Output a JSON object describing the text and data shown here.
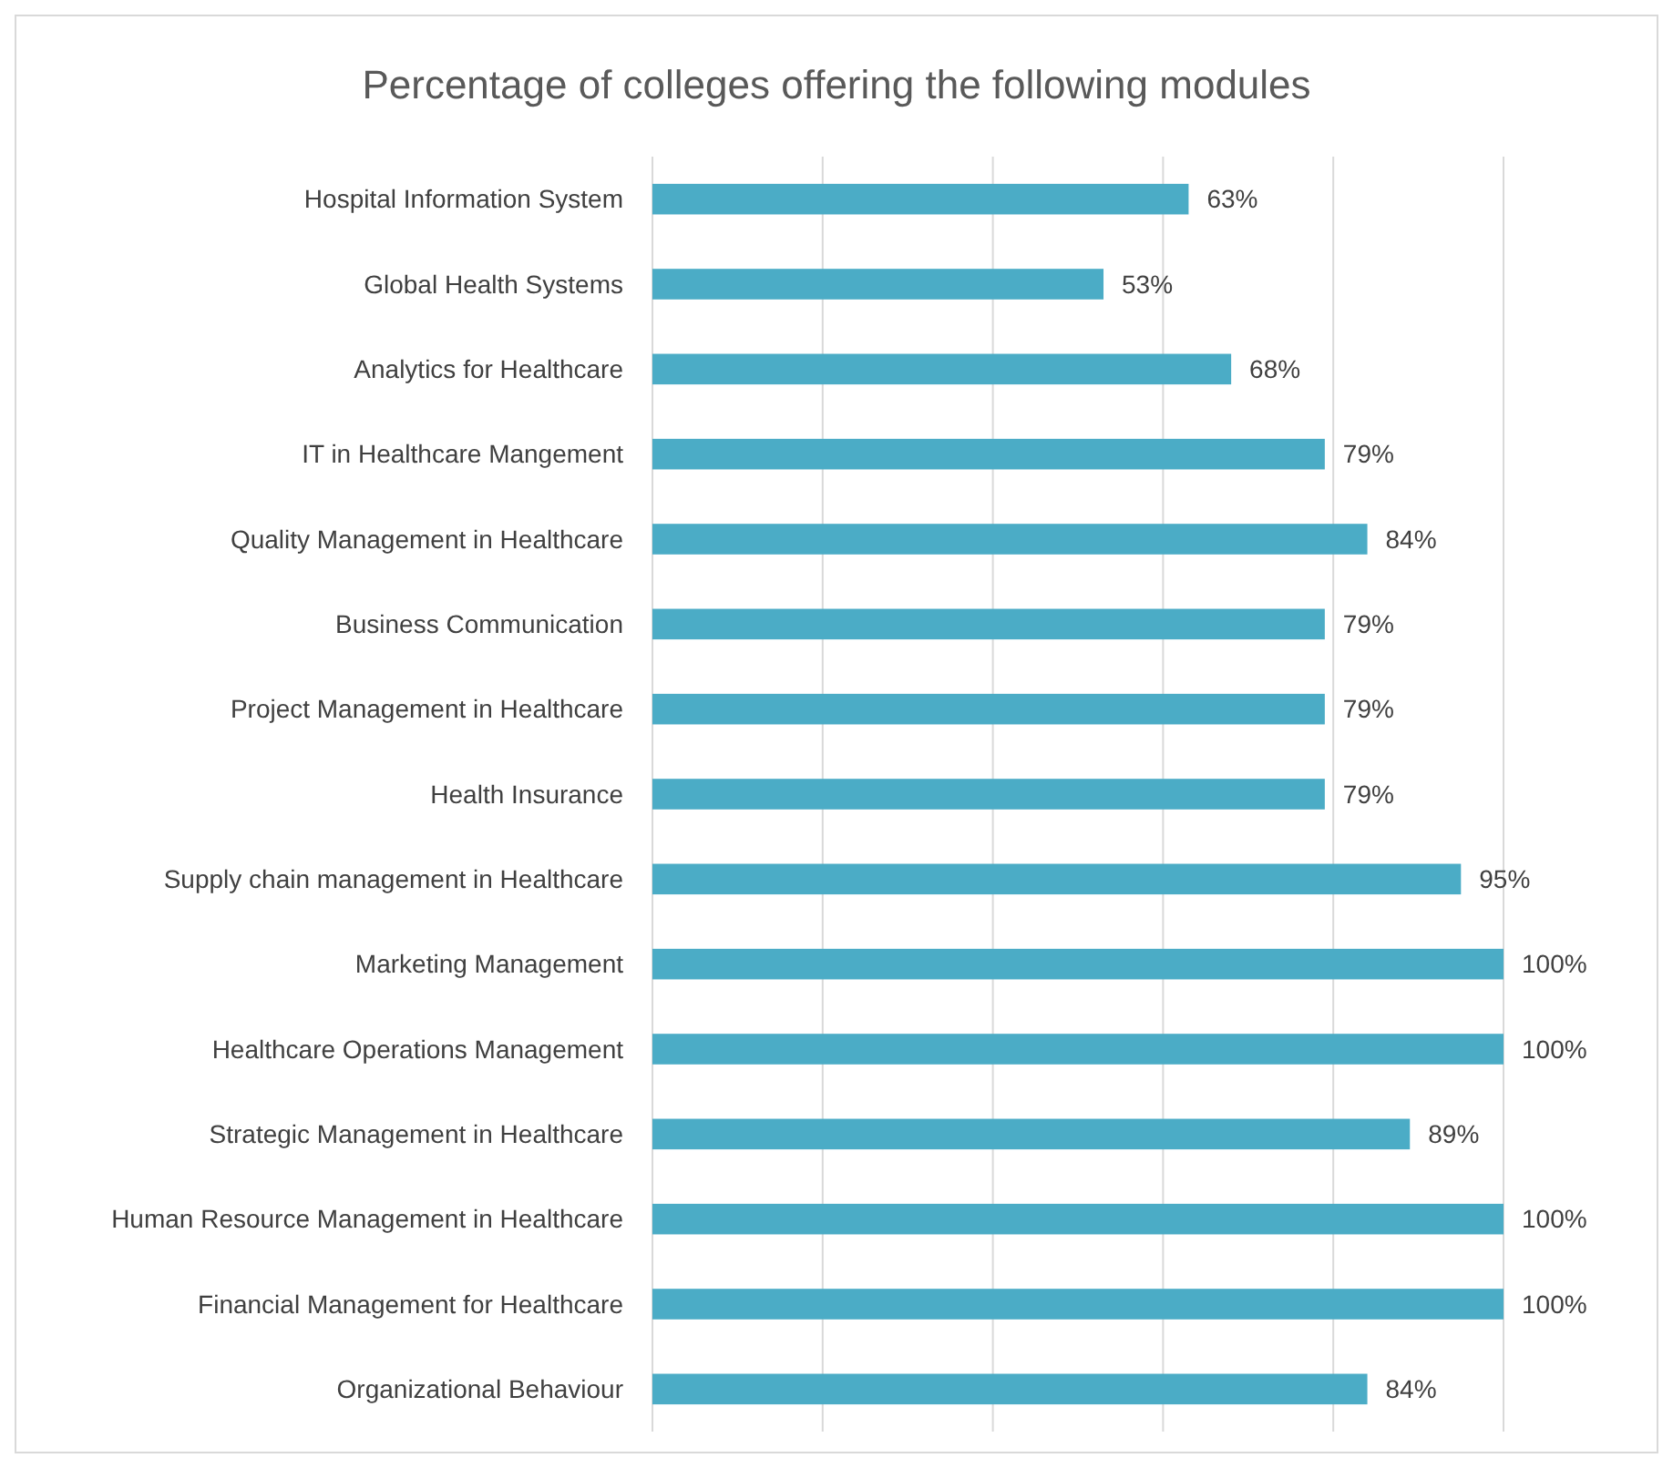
{
  "chart_data": {
    "type": "bar",
    "orientation": "horizontal",
    "title": "Percentage of colleges offering the following modules",
    "categories": [
      "Hospital Information System",
      "Global Health Systems",
      "Analytics for Healthcare",
      "IT in Healthcare Mangement",
      "Quality Management in Healthcare",
      "Business Communication",
      "Project Management in Healthcare",
      "Health Insurance",
      "Supply chain management in Healthcare",
      "Marketing Management",
      "Healthcare Operations Management",
      "Strategic Management in Healthcare",
      "Human Resource Management in Healthcare",
      "Financial Management for Healthcare",
      "Organizational Behaviour"
    ],
    "values": [
      63,
      53,
      68,
      79,
      84,
      79,
      79,
      79,
      95,
      100,
      100,
      89,
      100,
      100,
      84
    ],
    "value_labels": [
      "63%",
      "53%",
      "68%",
      "79%",
      "84%",
      "79%",
      "79%",
      "79%",
      "95%",
      "100%",
      "100%",
      "89%",
      "100%",
      "100%",
      "84%"
    ],
    "color": "#4bacc6",
    "xlim": [
      0,
      100
    ],
    "xticks": [
      {
        "value": 0,
        "label": null
      },
      {
        "value": 20,
        "label": null
      },
      {
        "value": 40,
        "label": null
      },
      {
        "value": 60,
        "label": null
      },
      {
        "value": 80,
        "label": null
      },
      {
        "value": 100,
        "label": null
      }
    ],
    "tick_labels": "y",
    "grid": "x"
  }
}
